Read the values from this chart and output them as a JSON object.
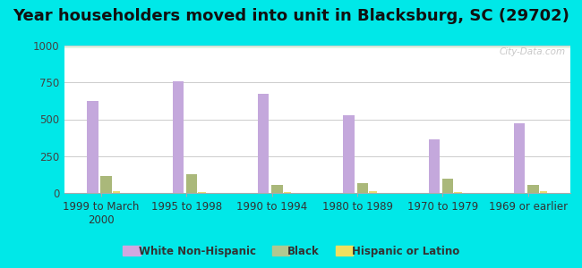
{
  "title": "Year householders moved into unit in Blacksburg, SC (29702)",
  "categories": [
    "1999 to March\n2000",
    "1995 to 1998",
    "1990 to 1994",
    "1980 to 1989",
    "1970 to 1979",
    "1969 or earlier"
  ],
  "white_non_hispanic": [
    625,
    755,
    675,
    530,
    365,
    475
  ],
  "black": [
    115,
    130,
    55,
    65,
    100,
    55
  ],
  "hispanic_or_latino": [
    12,
    5,
    5,
    10,
    5,
    10
  ],
  "bar_colors": {
    "white_non_hispanic": "#c4a8dc",
    "black": "#aab87a",
    "hispanic_or_latino": "#e8d870"
  },
  "legend_colors": {
    "white_non_hispanic": "#d0a8e0",
    "black": "#b0c890",
    "hispanic_or_latino": "#f0e060"
  },
  "ylim": [
    0,
    1000
  ],
  "yticks": [
    0,
    250,
    500,
    750,
    1000
  ],
  "background_color": "#00e8e8",
  "legend_labels": [
    "White Non-Hispanic",
    "Black",
    "Hispanic or Latino"
  ],
  "watermark": "City-Data.com",
  "title_fontsize": 13,
  "tick_fontsize": 8.5
}
